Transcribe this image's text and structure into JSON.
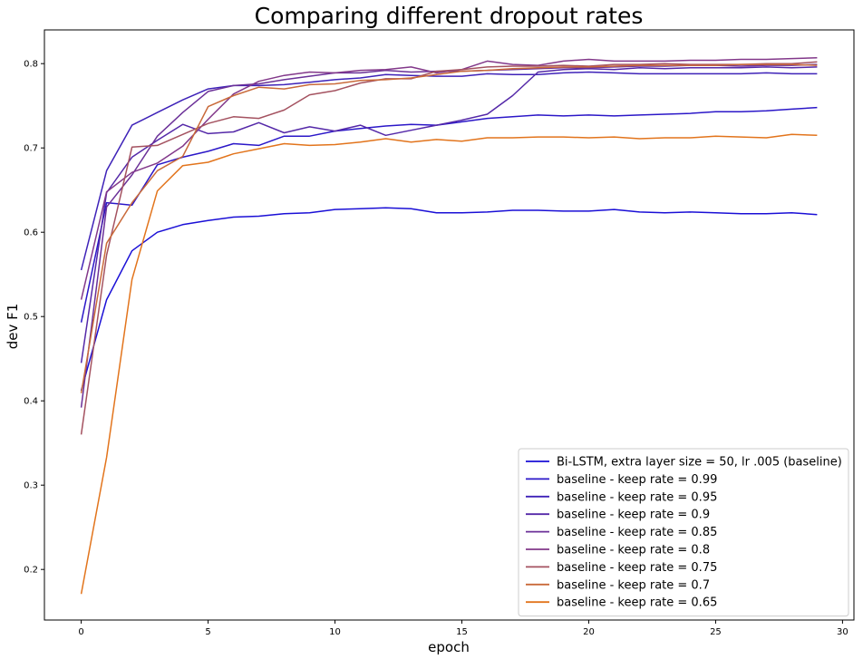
{
  "chart_data": {
    "type": "line",
    "title": "Comparing different dropout rates",
    "xlabel": "epoch",
    "ylabel": "dev F1",
    "xlim": [
      -1.45,
      30.45
    ],
    "ylim": [
      0.14,
      0.84
    ],
    "xticks": [
      0,
      5,
      10,
      15,
      20,
      25,
      30
    ],
    "yticks": [
      0.2,
      0.3,
      0.4,
      0.5,
      0.6,
      0.7,
      0.8
    ],
    "grid": false,
    "legend_position": "lower right",
    "x": [
      0,
      1,
      2,
      3,
      4,
      5,
      6,
      7,
      8,
      9,
      10,
      11,
      12,
      13,
      14,
      15,
      16,
      17,
      18,
      19,
      20,
      21,
      22,
      23,
      24,
      25,
      26,
      27,
      28,
      29
    ],
    "series": [
      {
        "name": "Bi-LSTM, extra layer size = 50, lr .005 (baseline)",
        "color": "#1a0fd6",
        "values": [
          0.412,
          0.52,
          0.578,
          0.6,
          0.609,
          0.614,
          0.618,
          0.619,
          0.622,
          0.623,
          0.627,
          0.628,
          0.629,
          0.628,
          0.623,
          0.623,
          0.624,
          0.626,
          0.626,
          0.625,
          0.625,
          0.627,
          0.624,
          0.623,
          0.624,
          0.623,
          0.622,
          0.622,
          0.623,
          0.621
        ]
      },
      {
        "name": "baseline - keep rate = 0.99",
        "color": "#2b17c8",
        "values": [
          0.493,
          0.635,
          0.632,
          0.68,
          0.689,
          0.696,
          0.705,
          0.703,
          0.714,
          0.714,
          0.72,
          0.723,
          0.726,
          0.728,
          0.727,
          0.731,
          0.735,
          0.737,
          0.739,
          0.738,
          0.739,
          0.738,
          0.739,
          0.74,
          0.741,
          0.743,
          0.743,
          0.744,
          0.746,
          0.748
        ]
      },
      {
        "name": "baseline - keep rate = 0.95",
        "color": "#3e22b8",
        "values": [
          0.555,
          0.673,
          0.727,
          0.742,
          0.757,
          0.77,
          0.774,
          0.774,
          0.775,
          0.778,
          0.781,
          0.783,
          0.787,
          0.786,
          0.785,
          0.785,
          0.788,
          0.787,
          0.787,
          0.789,
          0.79,
          0.789,
          0.788,
          0.788,
          0.788,
          0.788,
          0.788,
          0.789,
          0.788,
          0.788
        ]
      },
      {
        "name": "baseline - keep rate = 0.9",
        "color": "#5428a8",
        "values": [
          0.445,
          0.647,
          0.689,
          0.709,
          0.728,
          0.717,
          0.719,
          0.73,
          0.718,
          0.725,
          0.72,
          0.727,
          0.715,
          0.721,
          0.727,
          0.733,
          0.74,
          0.762,
          0.79,
          0.793,
          0.794,
          0.793,
          0.795,
          0.794,
          0.795,
          0.795,
          0.795,
          0.796,
          0.795,
          0.796
        ]
      },
      {
        "name": "baseline - keep rate = 0.85",
        "color": "#6b3098",
        "values": [
          0.392,
          0.63,
          0.668,
          0.714,
          0.742,
          0.767,
          0.774,
          0.776,
          0.781,
          0.785,
          0.789,
          0.789,
          0.792,
          0.79,
          0.791,
          0.791,
          0.792,
          0.793,
          0.794,
          0.795,
          0.795,
          0.796,
          0.797,
          0.797,
          0.798,
          0.798,
          0.797,
          0.798,
          0.798,
          0.799
        ]
      },
      {
        "name": "baseline - keep rate = 0.8",
        "color": "#82388a",
        "values": [
          0.52,
          0.648,
          0.671,
          0.682,
          0.702,
          0.734,
          0.764,
          0.779,
          0.786,
          0.79,
          0.789,
          0.792,
          0.793,
          0.796,
          0.789,
          0.793,
          0.803,
          0.799,
          0.798,
          0.803,
          0.805,
          0.803,
          0.803,
          0.803,
          0.804,
          0.804,
          0.805,
          0.805,
          0.806,
          0.807
        ]
      },
      {
        "name": "baseline - keep rate = 0.75",
        "color": "#a45260",
        "values": [
          0.36,
          0.573,
          0.701,
          0.703,
          0.716,
          0.729,
          0.737,
          0.735,
          0.745,
          0.763,
          0.768,
          0.777,
          0.782,
          0.782,
          0.791,
          0.793,
          0.796,
          0.797,
          0.797,
          0.798,
          0.797,
          0.799,
          0.799,
          0.8,
          0.799,
          0.799,
          0.799,
          0.8,
          0.8,
          0.802
        ]
      },
      {
        "name": "baseline - keep rate = 0.7",
        "color": "#c96a3a",
        "values": [
          0.409,
          0.587,
          0.635,
          0.673,
          0.69,
          0.749,
          0.762,
          0.772,
          0.77,
          0.775,
          0.776,
          0.78,
          0.781,
          0.783,
          0.787,
          0.791,
          0.792,
          0.794,
          0.795,
          0.796,
          0.796,
          0.797,
          0.798,
          0.798,
          0.798,
          0.798,
          0.799,
          0.799,
          0.799,
          0.798
        ]
      },
      {
        "name": "baseline - keep rate = 0.65",
        "color": "#e2741c",
        "values": [
          0.171,
          0.333,
          0.544,
          0.649,
          0.679,
          0.683,
          0.693,
          0.699,
          0.705,
          0.703,
          0.704,
          0.707,
          0.711,
          0.707,
          0.71,
          0.708,
          0.712,
          0.712,
          0.713,
          0.713,
          0.712,
          0.713,
          0.711,
          0.712,
          0.712,
          0.714,
          0.713,
          0.712,
          0.716,
          0.715
        ]
      }
    ]
  }
}
